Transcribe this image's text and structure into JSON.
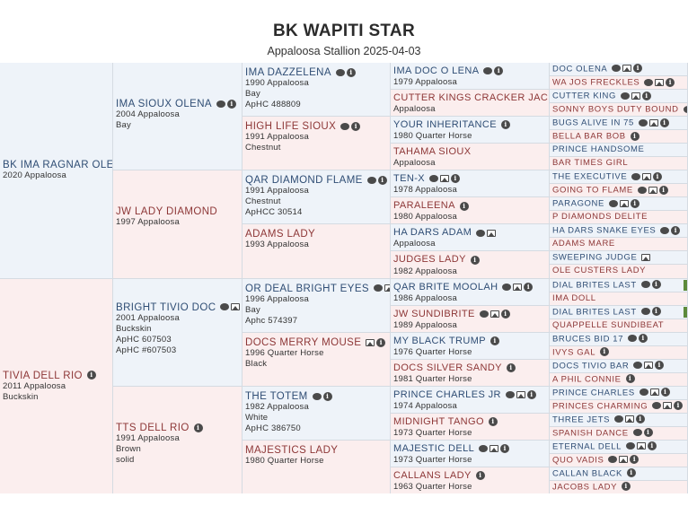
{
  "header": {
    "title": "BK WAPITI STAR",
    "subtitle": "Appaloosa Stallion 2025-04-03"
  },
  "pedigree": {
    "g1": [
      {
        "name": "BK IMA RAGNAR OLENA",
        "info": [
          "2020 Appaloosa"
        ],
        "icons": []
      },
      {
        "name": "TIVIA DELL RIO",
        "info": [
          "2011 Appaloosa",
          "Buckskin"
        ],
        "icons": [
          "info-icon"
        ]
      }
    ],
    "g2": [
      {
        "name": "IMA SIOUX OLENA",
        "info": [
          "2004 Appaloosa",
          "Bay"
        ],
        "icons": [
          "comment-icon",
          "info-icon"
        ]
      },
      {
        "name": "JW LADY DIAMOND",
        "info": [
          "1997 Appaloosa"
        ],
        "icons": []
      },
      {
        "name": "BRIGHT TIVIO DOC",
        "info": [
          "2001 Appaloosa",
          "Buckskin",
          "ApHC 607503",
          "ApHC #607503"
        ],
        "icons": [
          "comment-icon",
          "photo-icon",
          "info-icon"
        ]
      },
      {
        "name": "TTS DELL RIO",
        "info": [
          "1991 Appaloosa",
          "Brown",
          "solid"
        ],
        "icons": [
          "info-icon"
        ]
      }
    ],
    "g3": [
      {
        "name": "IMA DAZZELENA",
        "info": [
          "1990 Appaloosa",
          "Bay",
          "ApHC 488809"
        ],
        "icons": [
          "comment-icon",
          "info-icon"
        ]
      },
      {
        "name": "HIGH LIFE SIOUX",
        "info": [
          "1991 Appaloosa",
          "Chestnut"
        ],
        "icons": [
          "comment-icon",
          "info-icon"
        ]
      },
      {
        "name": "QAR DIAMOND FLAME",
        "info": [
          "1991 Appaloosa",
          "Chestnut",
          "ApHCC 30514"
        ],
        "icons": [
          "comment-icon",
          "info-icon"
        ]
      },
      {
        "name": "ADAMS LADY",
        "info": [
          "1993 Appaloosa"
        ],
        "icons": []
      },
      {
        "name": "OR DEAL BRIGHT EYES",
        "info": [
          "1996 Appaloosa",
          "Bay",
          "Aphc 574397"
        ],
        "icons": [
          "comment-icon",
          "photo-icon",
          "info-icon"
        ]
      },
      {
        "name": "DOCS MERRY MOUSE",
        "info": [
          "1996 Quarter Horse",
          "Black"
        ],
        "icons": [
          "photo-icon",
          "info-icon"
        ]
      },
      {
        "name": "THE TOTEM",
        "info": [
          "1982 Appaloosa",
          "White",
          "ApHC 386750"
        ],
        "icons": [
          "comment-icon",
          "info-icon"
        ]
      },
      {
        "name": "MAJESTICS LADY",
        "info": [
          "1980 Quarter Horse"
        ],
        "icons": []
      }
    ],
    "g4": [
      {
        "name": "IMA DOC O LENA",
        "info": [
          "1979 Appaloosa"
        ],
        "icons": [
          "comment-icon",
          "info-icon"
        ]
      },
      {
        "name": "CUTTER KINGS CRACKER JACK",
        "info": [
          "Appaloosa"
        ],
        "icons": [
          "info-icon"
        ]
      },
      {
        "name": "YOUR INHERITANCE",
        "info": [
          "1980 Quarter Horse"
        ],
        "icons": [
          "info-icon"
        ]
      },
      {
        "name": "TAHAMA SIOUX",
        "info": [
          "Appaloosa"
        ],
        "icons": []
      },
      {
        "name": "TEN-X",
        "info": [
          "1978 Appaloosa"
        ],
        "icons": [
          "comment-icon",
          "photo-icon",
          "info-icon"
        ]
      },
      {
        "name": "PARALEENA",
        "info": [
          "1980 Appaloosa"
        ],
        "icons": [
          "info-icon"
        ]
      },
      {
        "name": "HA DARS ADAM",
        "info": [
          "Appaloosa"
        ],
        "icons": [
          "comment-icon",
          "photo-icon"
        ]
      },
      {
        "name": "JUDGES LADY",
        "info": [
          "1982 Appaloosa"
        ],
        "icons": [
          "info-icon"
        ]
      },
      {
        "name": "QAR BRITE MOOLAH",
        "info": [
          "1986 Appaloosa"
        ],
        "icons": [
          "comment-icon",
          "photo-icon",
          "info-icon"
        ]
      },
      {
        "name": "JW SUNDIBRITE",
        "info": [
          "1989 Appaloosa"
        ],
        "icons": [
          "comment-icon",
          "photo-icon",
          "info-icon"
        ]
      },
      {
        "name": "MY BLACK TRUMP",
        "info": [
          "1976 Quarter Horse"
        ],
        "icons": [
          "info-icon"
        ]
      },
      {
        "name": "DOCS SILVER SANDY",
        "info": [
          "1981 Quarter Horse"
        ],
        "icons": [
          "info-icon"
        ]
      },
      {
        "name": "PRINCE CHARLES JR",
        "info": [
          "1974 Appaloosa"
        ],
        "icons": [
          "comment-icon",
          "photo-icon",
          "info-icon"
        ]
      },
      {
        "name": "MIDNIGHT TANGO",
        "info": [
          "1973 Quarter Horse"
        ],
        "icons": [
          "info-icon"
        ]
      },
      {
        "name": "MAJESTIC DELL",
        "info": [
          "1973 Quarter Horse"
        ],
        "icons": [
          "comment-icon",
          "photo-icon",
          "info-icon"
        ]
      },
      {
        "name": "CALLANS LADY",
        "info": [
          "1963 Quarter Horse"
        ],
        "icons": [
          "info-icon"
        ]
      }
    ],
    "g5": [
      {
        "name": "DOC OLENA",
        "icons": [
          "comment-icon",
          "photo-icon",
          "info-icon"
        ]
      },
      {
        "name": "WA JOS FRECKLES",
        "icons": [
          "comment-icon",
          "photo-icon",
          "info-icon"
        ]
      },
      {
        "name": "CUTTER KING",
        "icons": [
          "comment-icon",
          "photo-icon",
          "info-icon"
        ]
      },
      {
        "name": "SONNY BOYS DUTY BOUND",
        "icons": [
          "comment-icon",
          "info-icon"
        ]
      },
      {
        "name": "BUGS ALIVE IN 75",
        "icons": [
          "comment-icon",
          "photo-icon",
          "info-icon"
        ]
      },
      {
        "name": "BELLA BAR BOB",
        "icons": [
          "info-icon"
        ]
      },
      {
        "name": "PRINCE HANDSOME",
        "icons": []
      },
      {
        "name": "BAR TIMES GIRL",
        "icons": []
      },
      {
        "name": "THE EXECUTIVE",
        "icons": [
          "comment-icon",
          "photo-icon",
          "info-icon"
        ]
      },
      {
        "name": "GOING TO FLAME",
        "icons": [
          "comment-icon",
          "photo-icon",
          "info-icon"
        ]
      },
      {
        "name": "PARAGONE",
        "icons": [
          "comment-icon",
          "photo-icon",
          "info-icon"
        ]
      },
      {
        "name": "P DIAMONDS DELITE",
        "icons": []
      },
      {
        "name": "HA DARS SNAKE EYES",
        "icons": [
          "comment-icon",
          "info-icon"
        ]
      },
      {
        "name": "ADAMS MARE",
        "icons": []
      },
      {
        "name": "SWEEPING JUDGE",
        "icons": [
          "photo-icon"
        ]
      },
      {
        "name": "OLE CUSTERS LADY",
        "icons": []
      },
      {
        "name": "DIAL BRITES LAST",
        "icons": [
          "comment-icon",
          "info-icon"
        ],
        "mark": true
      },
      {
        "name": "IMA DOLL",
        "icons": []
      },
      {
        "name": "DIAL BRITES LAST",
        "icons": [
          "comment-icon",
          "info-icon"
        ],
        "mark": true
      },
      {
        "name": "QUAPPELLE SUNDIBEAT",
        "icons": []
      },
      {
        "name": "BRUCES BID 17",
        "icons": [
          "comment-icon",
          "info-icon"
        ]
      },
      {
        "name": "IVYS GAL",
        "icons": [
          "info-icon"
        ]
      },
      {
        "name": "DOCS TIVIO BAR",
        "icons": [
          "comment-icon",
          "photo-icon",
          "info-icon"
        ]
      },
      {
        "name": "A PHIL CONNIE",
        "icons": [
          "info-icon"
        ]
      },
      {
        "name": "PRINCE CHARLES",
        "icons": [
          "comment-icon",
          "photo-icon",
          "info-icon"
        ]
      },
      {
        "name": "PRINCES CHARMING",
        "icons": [
          "comment-icon",
          "photo-icon",
          "info-icon"
        ]
      },
      {
        "name": "THREE JETS",
        "icons": [
          "comment-icon",
          "photo-icon",
          "info-icon"
        ]
      },
      {
        "name": "SPANISH DANCE",
        "icons": [
          "comment-icon",
          "info-icon"
        ]
      },
      {
        "name": "ETERNAL DELL",
        "icons": [
          "comment-icon",
          "photo-icon",
          "info-icon"
        ]
      },
      {
        "name": "QUO VADIS",
        "icons": [
          "comment-icon",
          "photo-icon",
          "info-icon"
        ]
      },
      {
        "name": "CALLAN BLACK",
        "icons": [
          "info-icon"
        ]
      },
      {
        "name": "JACOBS LADY",
        "icons": [
          "info-icon"
        ]
      }
    ]
  }
}
